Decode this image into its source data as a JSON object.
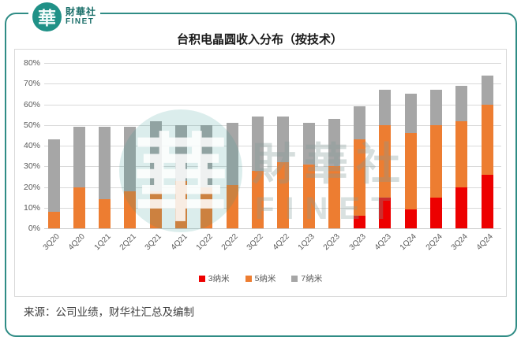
{
  "logo": {
    "glyph": "華",
    "name_cn": "財華社",
    "name_en": "FINET"
  },
  "chart": {
    "title": "台积电晶圆收入分布（按技术）"
  },
  "chart_data": {
    "type": "bar",
    "stacked": true,
    "title": "台积电晶圆收入分布（按技术）",
    "categories": [
      "3Q20",
      "4Q20",
      "1Q21",
      "2Q21",
      "3Q21",
      "4Q21",
      "1Q22",
      "2Q22",
      "3Q22",
      "4Q22",
      "1Q23",
      "2Q23",
      "3Q23",
      "4Q23",
      "1Q24",
      "2Q24",
      "3Q24",
      "4Q24"
    ],
    "series": [
      {
        "name": "3纳米",
        "key": "3nm",
        "color": "#ED0000",
        "values": [
          0,
          0,
          0,
          0,
          0,
          0,
          0,
          0,
          0,
          0,
          0,
          0,
          6,
          15,
          9,
          15,
          20,
          26
        ]
      },
      {
        "name": "5纳米",
        "key": "5nm",
        "color": "#ED7D31",
        "values": [
          8,
          20,
          14,
          18,
          18,
          23,
          20,
          21,
          28,
          32,
          31,
          30,
          37,
          35,
          37,
          35,
          32,
          34
        ]
      },
      {
        "name": "7纳米",
        "key": "7nm",
        "color": "#A6A6A6",
        "values": [
          35,
          29,
          35,
          31,
          34,
          27,
          30,
          30,
          26,
          22,
          20,
          23,
          16,
          17,
          19,
          17,
          17,
          14
        ]
      }
    ],
    "y_ticks": [
      "0%",
      "10%",
      "20%",
      "30%",
      "40%",
      "50%",
      "60%",
      "70%",
      "80%"
    ],
    "ylim": [
      0,
      80
    ],
    "xlabel": "",
    "ylabel": "",
    "grid": true,
    "legend_position": "bottom"
  },
  "watermark": {
    "glyph": "華",
    "text_cn": "財華社",
    "text_en": "FINET"
  },
  "source": "来源：公司业绩，财华社汇总及编制",
  "colors": {
    "accent_teal": "#2F8C85",
    "grid": "#D9D9D9",
    "axis_text": "#595959"
  }
}
